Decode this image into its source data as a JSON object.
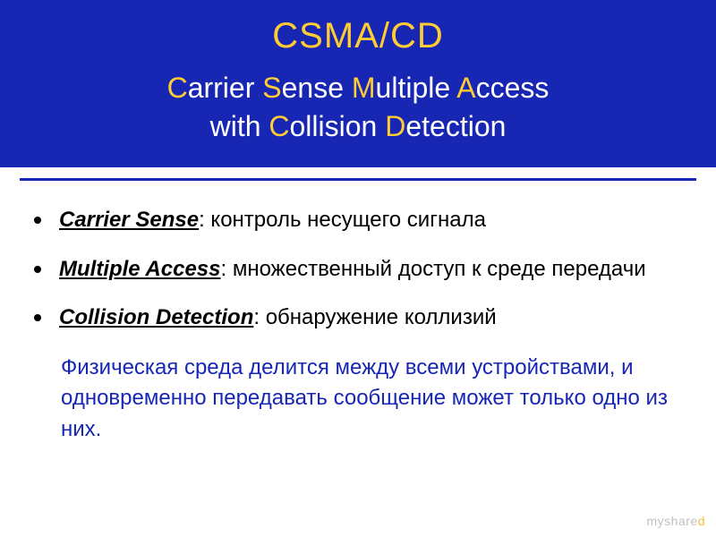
{
  "colors": {
    "header_bg": "#1727b4",
    "accent": "#ffcc33",
    "text_white": "#ffffff",
    "text_black": "#000000",
    "summary_color": "#1727b4",
    "page_bg": "#ffffff",
    "watermark_gray": "#c0c0c0",
    "watermark_yellow": "#f0c040"
  },
  "typography": {
    "title_fontsize": 40,
    "subtitle_fontsize": 32,
    "body_fontsize": 24,
    "font_family": "Arial"
  },
  "title": "CSMA/CD",
  "subtitle_parts": {
    "C1": "C",
    "arrier": "arrier ",
    "S": "S",
    "ense": "ense ",
    "M": "M",
    "ultiple": "ultiple ",
    "A": "A",
    "ccess": "ccess",
    "line2_pre": "with ",
    "C2": "C",
    "ollision": "ollision ",
    "D": "D",
    "etection": "etection"
  },
  "bullets": [
    {
      "term": "Carrier Sense",
      "desc": ": контроль несущего сигнала"
    },
    {
      "term": "Multiple Access",
      "desc": ": множественный доступ к среде передачи"
    },
    {
      "term": "Collision Detection",
      "desc": ": обнаружение коллизий"
    }
  ],
  "summary": "Физическая среда делится между всеми устройствами, и одновременно передавать сообщение может только одно из них.",
  "watermark": {
    "part1": "myshare",
    "part2": "d"
  }
}
